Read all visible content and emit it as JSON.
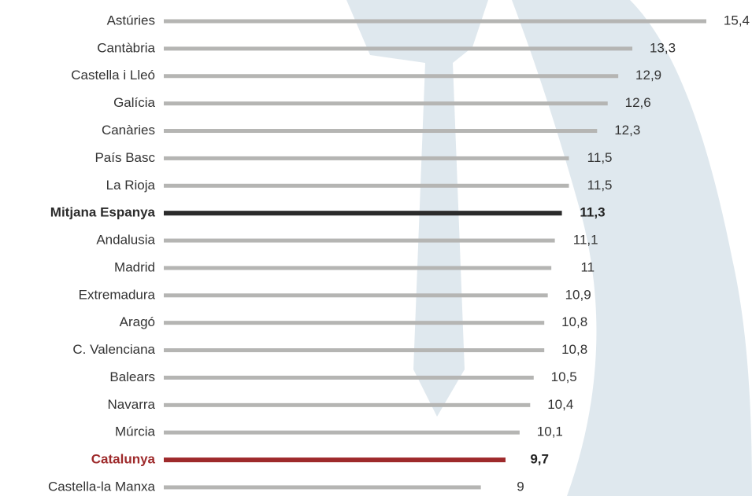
{
  "chart_data": {
    "type": "bar",
    "orientation": "horizontal",
    "categories": [
      "Astúries",
      "Cantàbria",
      "Castella i Lleó",
      "Galícia",
      "Canàries",
      "País Basc",
      "La Rioja",
      "Mitjana Espanya",
      "Andalusia",
      "Madrid",
      "Extremadura",
      "Aragó",
      "C. Valenciana",
      "Balears",
      "Navarra",
      "Múrcia",
      "Catalunya",
      "Castella-la Manxa"
    ],
    "values": [
      15.4,
      13.3,
      12.9,
      12.6,
      12.3,
      11.5,
      11.5,
      11.3,
      11.1,
      11,
      10.9,
      10.8,
      10.8,
      10.5,
      10.4,
      10.1,
      9.7,
      9
    ],
    "value_labels": [
      "15,4",
      "13,3",
      "12,9",
      "12,6",
      "12,3",
      "11,5",
      "11,5",
      "11,3",
      "11,1",
      "11",
      "10,9",
      "10,8",
      "10,8",
      "10,5",
      "10,4",
      "10,1",
      "9,7",
      "9"
    ],
    "color": "#b5b5b3",
    "colors": [
      "#b5b5b3",
      "#b5b5b3",
      "#b5b5b3",
      "#b5b5b3",
      "#b5b5b3",
      "#b5b5b3",
      "#b5b5b3",
      "#2b2b2b",
      "#b5b5b3",
      "#b5b5b3",
      "#b5b5b3",
      "#b5b5b3",
      "#b5b5b3",
      "#b5b5b3",
      "#b5b5b3",
      "#b5b5b3",
      "#9e2a2b",
      "#b5b5b3"
    ],
    "xlim": [
      0,
      15.4
    ]
  }
}
